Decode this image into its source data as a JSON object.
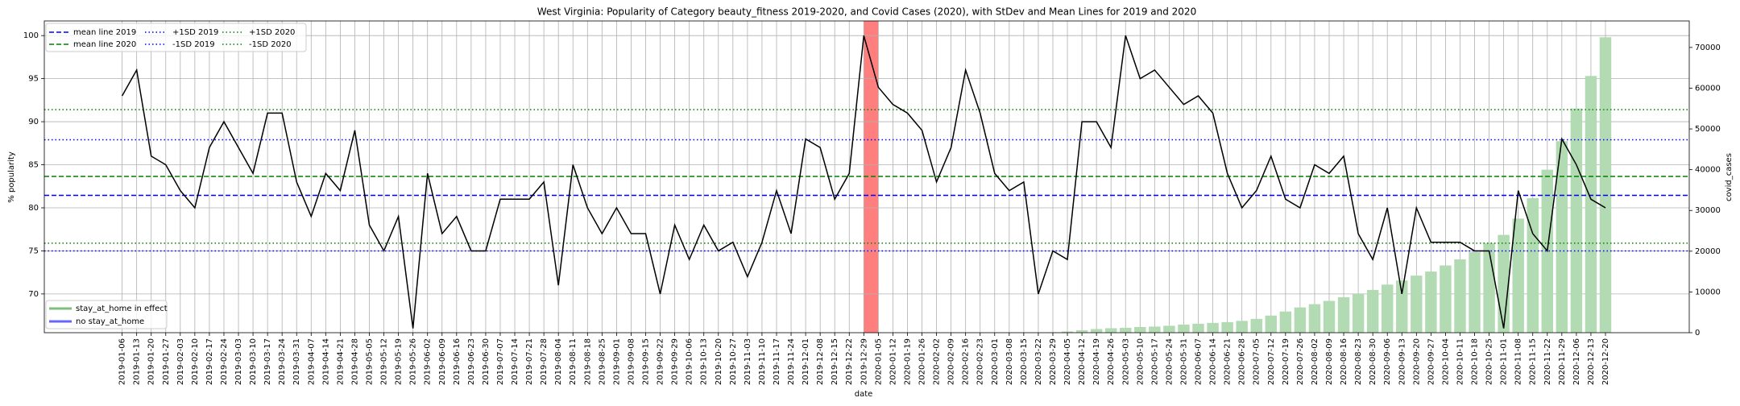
{
  "chart_data": {
    "type": "line",
    "title": "West Virginia: Popularity of Category beauty_fitness 2019-2020, and Covid Cases (2020), with StDev and Mean Lines for 2019 and 2020",
    "xlabel": "date",
    "ylabel": "% popularity",
    "y2label": "covid_cases",
    "categories": [
      "2019-01-06",
      "2019-01-13",
      "2019-01-20",
      "2019-01-27",
      "2019-02-03",
      "2019-02-10",
      "2019-02-17",
      "2019-02-24",
      "2019-03-03",
      "2019-03-10",
      "2019-03-17",
      "2019-03-24",
      "2019-03-31",
      "2019-04-07",
      "2019-04-14",
      "2019-04-21",
      "2019-04-28",
      "2019-05-05",
      "2019-05-12",
      "2019-05-19",
      "2019-05-26",
      "2019-06-02",
      "2019-06-09",
      "2019-06-16",
      "2019-06-23",
      "2019-06-30",
      "2019-07-07",
      "2019-07-14",
      "2019-07-21",
      "2019-07-28",
      "2019-08-04",
      "2019-08-11",
      "2019-08-18",
      "2019-08-25",
      "2019-09-01",
      "2019-09-08",
      "2019-09-15",
      "2019-09-22",
      "2019-09-29",
      "2019-10-06",
      "2019-10-13",
      "2019-10-20",
      "2019-10-27",
      "2019-11-03",
      "2019-11-10",
      "2019-11-17",
      "2019-11-24",
      "2019-12-01",
      "2019-12-08",
      "2019-12-15",
      "2019-12-22",
      "2019-12-29",
      "2020-01-05",
      "2020-01-12",
      "2020-01-19",
      "2020-01-26",
      "2020-02-02",
      "2020-02-09",
      "2020-02-16",
      "2020-02-23",
      "2020-03-01",
      "2020-03-08",
      "2020-03-15",
      "2020-03-22",
      "2020-03-29",
      "2020-04-05",
      "2020-04-12",
      "2020-04-19",
      "2020-04-26",
      "2020-05-03",
      "2020-05-10",
      "2020-05-17",
      "2020-05-24",
      "2020-05-31",
      "2020-06-07",
      "2020-06-14",
      "2020-06-21",
      "2020-06-28",
      "2020-07-05",
      "2020-07-12",
      "2020-07-19",
      "2020-07-26",
      "2020-08-02",
      "2020-08-09",
      "2020-08-16",
      "2020-08-23",
      "2020-08-30",
      "2020-09-06",
      "2020-09-13",
      "2020-09-20",
      "2020-09-27",
      "2020-10-04",
      "2020-10-11",
      "2020-10-18",
      "2020-10-25",
      "2020-11-01",
      "2020-11-08",
      "2020-11-15",
      "2020-11-22",
      "2020-11-29",
      "2020-12-06",
      "2020-12-13",
      "2020-12-20"
    ],
    "series": [
      {
        "type": "line",
        "color": "#000000",
        "values": [
          93,
          96,
          86,
          85,
          82,
          80,
          87,
          90,
          87,
          84,
          91,
          91,
          83,
          79,
          84,
          82,
          89,
          78,
          75,
          79,
          66,
          84,
          77,
          79,
          75,
          75,
          81,
          81,
          81,
          83,
          71,
          85,
          80,
          77,
          80,
          77,
          77,
          70,
          78,
          74,
          78,
          75,
          76,
          72,
          76,
          82,
          77,
          88,
          87,
          81,
          84,
          100,
          94,
          92,
          91,
          89,
          83,
          87,
          96,
          91,
          84,
          82,
          83,
          70,
          75,
          74,
          90,
          90,
          87,
          100,
          95,
          96,
          94,
          92,
          93,
          91,
          84,
          80,
          82,
          86,
          81,
          80,
          85,
          84,
          86,
          77,
          74,
          80,
          70,
          80,
          76,
          76,
          76,
          75,
          75,
          66,
          82,
          77,
          75,
          88,
          85,
          81,
          80
        ]
      },
      {
        "type": "bar",
        "axis": "y2",
        "color": "#b3dbb3",
        "values": [
          null,
          null,
          null,
          null,
          null,
          null,
          null,
          null,
          null,
          null,
          null,
          null,
          null,
          null,
          null,
          null,
          null,
          null,
          null,
          null,
          null,
          null,
          null,
          null,
          null,
          null,
          null,
          null,
          null,
          null,
          null,
          null,
          null,
          null,
          null,
          null,
          null,
          null,
          null,
          null,
          null,
          null,
          null,
          null,
          null,
          null,
          null,
          null,
          null,
          null,
          null,
          null,
          null,
          null,
          null,
          null,
          null,
          null,
          null,
          null,
          null,
          null,
          null,
          null,
          100,
          300,
          600,
          900,
          1100,
          1200,
          1400,
          1500,
          1700,
          2000,
          2200,
          2400,
          2600,
          2900,
          3400,
          4200,
          5200,
          6200,
          7000,
          7800,
          8700,
          9500,
          10500,
          11800,
          12800,
          14000,
          15000,
          16500,
          18000,
          19800,
          22000,
          24000,
          28000,
          33000,
          40000,
          47000,
          55000,
          63000,
          72500
        ]
      }
    ],
    "hlines": [
      {
        "name": "mean line 2019",
        "value": 81.45,
        "color": "#0000ff",
        "style": "dashed"
      },
      {
        "name": "mean line 2020",
        "value": 83.65,
        "color": "#008000",
        "style": "dashed"
      },
      {
        "name": "+1SD 2019",
        "value": 87.9,
        "color": "#0000ff",
        "style": "dotted"
      },
      {
        "name": "-1SD 2019",
        "value": 75.0,
        "color": "#0000ff",
        "style": "dotted"
      },
      {
        "name": "+1SD 2020",
        "value": 91.4,
        "color": "#008000",
        "style": "dotted"
      },
      {
        "name": "-1SD 2020",
        "value": 75.9,
        "color": "#008000",
        "style": "dotted"
      }
    ],
    "highlight": {
      "from": "2019-12-29",
      "to": "2020-01-05",
      "color": "#ff7f7f"
    },
    "legend2": [
      {
        "name": "stay_at_home in effect",
        "color": "#7fbf7f"
      },
      {
        "name": "no stay_at_home",
        "color": "#6666ff"
      }
    ],
    "ylim": [
      65.5,
      101.7
    ],
    "yticks": [
      70,
      75,
      80,
      85,
      90,
      95,
      100
    ],
    "y2lim": [
      0,
      76500
    ],
    "y2ticks": [
      0,
      10000,
      20000,
      30000,
      40000,
      50000,
      60000,
      70000
    ],
    "grid": true
  }
}
